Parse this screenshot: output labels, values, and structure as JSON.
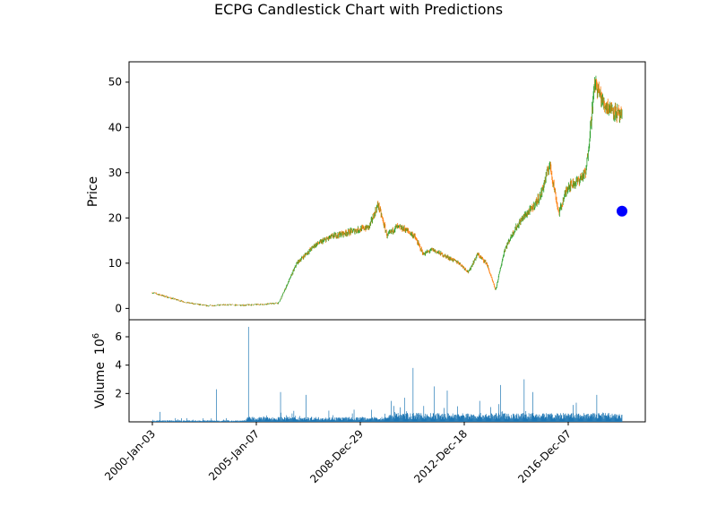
{
  "chart_data": {
    "title": "ECPG Candlestick Chart with Predictions",
    "price_panel": {
      "type": "candlestick",
      "ylabel": "Price",
      "ylim": [
        -2.5,
        54.5
      ],
      "yticks": [
        0,
        10,
        20,
        30,
        40,
        50
      ],
      "up_color": "#2ca02c",
      "down_color": "#ff7f0e",
      "series": [
        {
          "name": "",
          "x": [
            0,
            20,
            40,
            60,
            80,
            100,
            120,
            140,
            160,
            180,
            200,
            220,
            240,
            250,
            260,
            270,
            280,
            290,
            300,
            310,
            320,
            330,
            340,
            350,
            360,
            370,
            380,
            390,
            400,
            410,
            420,
            430,
            440,
            450,
            460,
            470,
            480,
            490,
            500,
            510,
            520
          ],
          "values": [
            3.5,
            2.3,
            1.2,
            0.6,
            0.8,
            0.7,
            0.9,
            1.2,
            10,
            14,
            16,
            17,
            18,
            23,
            16,
            18,
            17.5,
            16,
            12,
            13,
            12,
            11,
            10,
            8,
            12,
            10,
            4,
            13,
            17,
            20,
            22,
            25,
            32,
            21,
            27,
            28,
            30,
            50,
            45,
            44,
            42
          ]
        }
      ],
      "prediction_marker": {
        "x": 1000,
        "y": 21.5,
        "color": "#0000ff"
      }
    },
    "volume_panel": {
      "type": "bar",
      "ylabel": "Volume",
      "scale_label": "10",
      "scale_exponent": "6",
      "ylim": [
        0,
        7.2
      ],
      "yticks": [
        2,
        4,
        6
      ],
      "color": "#1f77b4"
    },
    "x_axis": {
      "tick_labels": [
        "2000-Jan-03",
        "2005-Jan-07",
        "2008-Dec-29",
        "2012-Dec-18",
        "2016-Dec-07"
      ]
    }
  }
}
